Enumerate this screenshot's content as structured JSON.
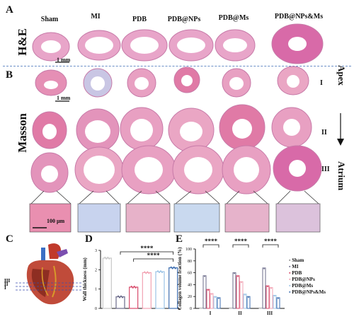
{
  "panels": {
    "A": "A",
    "B": "B",
    "C": "C",
    "D": "D",
    "E": "E"
  },
  "groups": [
    "Sham",
    "MI",
    "PDB",
    "PDB@NPs",
    "PDB@Ms",
    "PDB@NPs&Ms"
  ],
  "group_colors": [
    "#c9c9c9",
    "#6b6b8a",
    "#d84a6a",
    "#f2a3b3",
    "#9bc3e6",
    "#3f6fb0"
  ],
  "row_labels": {
    "he": "H&E",
    "masson": "Masson"
  },
  "scale_bars": {
    "mm1": "1 mm",
    "mm2": "1 mm",
    "um": "100 μm"
  },
  "levels": [
    "I",
    "II",
    "III"
  ],
  "side_labels": {
    "apex": "Apex",
    "atrium": "Atrium"
  },
  "heart_levels": [
    "III",
    "II",
    "I"
  ],
  "sig_labels": {
    "d1": "****",
    "d2": "****",
    "e1": "****",
    "e2": "****",
    "e3": "****"
  },
  "chart_data": [
    {
      "type": "bar",
      "panel": "D",
      "ylabel": "Wall thickness (mm)",
      "categories": [
        "Sham",
        "MI",
        "PDB",
        "PDB@NPs",
        "PDB@Ms",
        "PDB@NPs&Ms"
      ],
      "values": [
        2.6,
        0.6,
        1.1,
        1.85,
        1.9,
        2.1
      ],
      "ylim": [
        0,
        3
      ],
      "yticks": [
        "0",
        "1",
        "2",
        "3"
      ]
    },
    {
      "type": "bar",
      "panel": "E",
      "ylabel": "Collagen volume fraction (%)",
      "categories": [
        "I",
        "II",
        "III"
      ],
      "series": [
        {
          "name": "Sham",
          "values": [
            1,
            1,
            1
          ]
        },
        {
          "name": "MI",
          "values": [
            55,
            60,
            68
          ]
        },
        {
          "name": "PDB",
          "values": [
            32,
            55,
            38
          ]
        },
        {
          "name": "PDB@NPs",
          "values": [
            25,
            45,
            35
          ]
        },
        {
          "name": "PDB@Ms",
          "values": [
            20,
            24,
            22
          ]
        },
        {
          "name": "PDB@NPs&Ms",
          "values": [
            18,
            20,
            18
          ]
        }
      ],
      "ylim": [
        0,
        100
      ],
      "yticks": [
        "0",
        "20",
        "40",
        "60",
        "80",
        "100"
      ]
    }
  ]
}
